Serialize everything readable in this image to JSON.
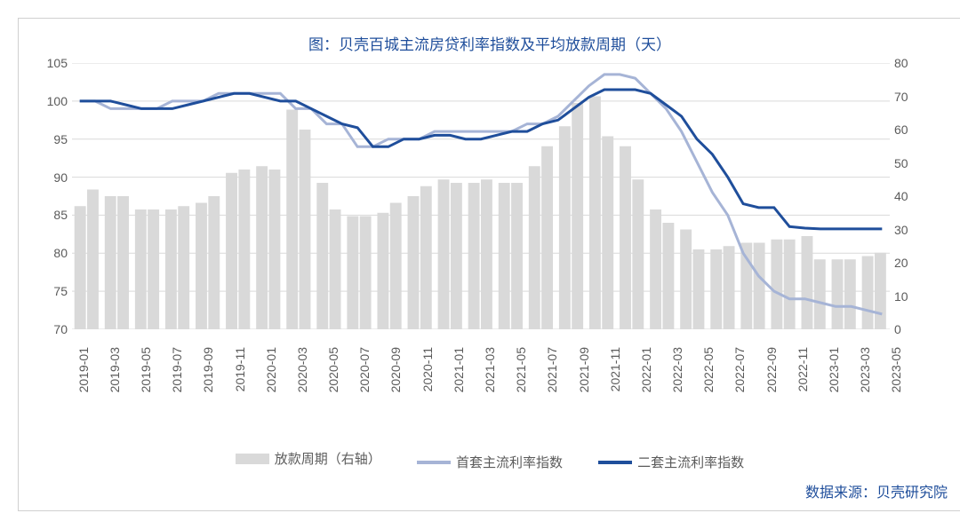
{
  "chart": {
    "type": "combo-bar-line-dual-axis",
    "title": "图：贝壳百城主流房贷利率指数及平均放款周期（天）",
    "title_color": "#1f4e9b",
    "title_fontsize": 17,
    "background_color": "#ffffff",
    "grid_color": "#d9d9d9",
    "border_color": "#d0d0d0",
    "axis_font_color": "#5b5b5b",
    "axis_fontsize": 14,
    "categories": [
      "2019-01",
      "2019-03",
      "2019-05",
      "2019-07",
      "2019-09",
      "2019-11",
      "2020-01",
      "2020-03",
      "2020-05",
      "2020-07",
      "2020-09",
      "2020-11",
      "2021-01",
      "2021-03",
      "2021-05",
      "2021-07",
      "2021-09",
      "2021-11",
      "2022-01",
      "2022-03",
      "2022-05",
      "2022-07",
      "2022-09",
      "2022-11",
      "2023-01",
      "2023-03",
      "2023-05"
    ],
    "left_axis": {
      "min": 70,
      "max": 105,
      "step": 5,
      "ticks": [
        70,
        75,
        80,
        85,
        90,
        95,
        100,
        105
      ]
    },
    "right_axis": {
      "min": 0,
      "max": 80,
      "step": 10,
      "ticks": [
        0,
        10,
        20,
        30,
        40,
        50,
        60,
        70,
        80
      ]
    },
    "series": {
      "bars": {
        "name": "放款周期（右轴）",
        "axis": "right",
        "color": "#d9d9d9",
        "bar_width_ratio": 0.42,
        "pairs_per_category": 2,
        "values": [
          [
            37,
            42
          ],
          [
            40,
            40
          ],
          [
            36,
            36
          ],
          [
            36,
            37
          ],
          [
            38,
            40
          ],
          [
            47,
            48
          ],
          [
            49,
            48
          ],
          [
            66,
            60
          ],
          [
            44,
            36
          ],
          [
            34,
            34
          ],
          [
            35,
            38
          ],
          [
            40,
            43
          ],
          [
            45,
            44
          ],
          [
            44,
            45
          ],
          [
            44,
            44
          ],
          [
            49,
            55
          ],
          [
            61,
            68
          ],
          [
            70,
            58
          ],
          [
            55,
            45
          ],
          [
            36,
            32
          ],
          [
            30,
            24
          ],
          [
            24,
            25
          ],
          [
            26,
            26
          ],
          [
            27,
            27
          ],
          [
            28,
            21
          ],
          [
            21,
            21
          ],
          [
            22,
            23
          ]
        ]
      },
      "line_first": {
        "name": "首套主流利率指数",
        "axis": "left",
        "color": "#a6b4d6",
        "line_width": 3,
        "values": [
          100,
          100,
          99,
          99,
          99,
          99,
          100,
          100,
          100,
          101,
          101,
          101,
          101,
          101,
          99,
          99,
          97,
          97,
          94,
          94,
          95,
          95,
          95,
          96,
          96,
          96,
          96,
          96,
          96,
          97,
          97,
          98,
          100,
          102,
          103.5,
          103.5,
          103,
          101,
          99,
          96,
          92,
          88,
          85,
          80,
          77,
          75,
          74,
          74,
          73.5,
          73,
          73,
          72.5,
          72
        ]
      },
      "line_second": {
        "name": "二套主流利率指数",
        "axis": "left",
        "color": "#1f4e9b",
        "line_width": 3,
        "values": [
          100,
          100,
          100,
          99.5,
          99,
          99,
          99,
          99.5,
          100,
          100.5,
          101,
          101,
          100.5,
          100,
          100,
          99,
          98,
          97,
          96.5,
          94,
          94,
          95,
          95,
          95.5,
          95.5,
          95,
          95,
          95.5,
          96,
          96,
          97,
          97.5,
          99,
          100.5,
          101.5,
          101.5,
          101.5,
          101,
          99.5,
          98,
          95,
          93,
          90,
          86.5,
          86,
          86,
          83.5,
          83.3,
          83.2,
          83.2,
          83.2,
          83.2,
          83.2
        ]
      }
    },
    "legend": {
      "items": [
        {
          "key": "bars",
          "label": "放款周期（右轴）",
          "type": "bar",
          "color": "#d9d9d9"
        },
        {
          "key": "line_first",
          "label": "首套主流利率指数",
          "type": "line",
          "color": "#a6b4d6"
        },
        {
          "key": "line_second",
          "label": "二套主流利率指数",
          "type": "line",
          "color": "#1f4e9b"
        }
      ],
      "fontsize": 15,
      "font_color": "#5b5b5b"
    },
    "source": {
      "text": "数据来源：贝壳研究院",
      "color": "#1f4e9b",
      "fontsize": 16
    }
  }
}
